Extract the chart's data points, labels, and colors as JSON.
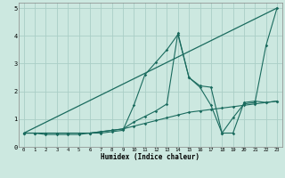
{
  "xlabel": "Humidex (Indice chaleur)",
  "xlim": [
    -0.5,
    23.5
  ],
  "ylim": [
    0,
    5.2
  ],
  "xticks": [
    0,
    1,
    2,
    3,
    4,
    5,
    6,
    7,
    8,
    9,
    10,
    11,
    12,
    13,
    14,
    15,
    16,
    17,
    18,
    19,
    20,
    21,
    22,
    23
  ],
  "yticks": [
    0,
    1,
    2,
    3,
    4,
    5
  ],
  "bg_color": "#cce8e0",
  "grid_color": "#aacec6",
  "line_color": "#1a6b5e",
  "series1_x": [
    0,
    1,
    2,
    3,
    4,
    5,
    6,
    7,
    8,
    9,
    10,
    11,
    12,
    13,
    14,
    15,
    16,
    17,
    18,
    19,
    20,
    21,
    22,
    23
  ],
  "series1_y": [
    0.5,
    0.5,
    0.5,
    0.5,
    0.5,
    0.5,
    0.5,
    0.55,
    0.6,
    0.65,
    0.75,
    0.85,
    0.95,
    1.05,
    1.15,
    1.25,
    1.3,
    1.35,
    1.4,
    1.45,
    1.5,
    1.55,
    1.6,
    1.65
  ],
  "series2_x": [
    0,
    1,
    2,
    3,
    4,
    5,
    6,
    7,
    8,
    9,
    10,
    11,
    12,
    13,
    14,
    15,
    16,
    17,
    18,
    19,
    20,
    21,
    22,
    23
  ],
  "series2_y": [
    0.5,
    0.5,
    0.45,
    0.45,
    0.45,
    0.45,
    0.5,
    0.5,
    0.55,
    0.6,
    1.5,
    2.6,
    3.05,
    3.5,
    4.05,
    2.5,
    2.15,
    1.5,
    0.5,
    1.05,
    1.55,
    1.6,
    3.65,
    5.0
  ],
  "series3_x": [
    0,
    1,
    2,
    3,
    4,
    5,
    6,
    7,
    8,
    9,
    10,
    11,
    12,
    13,
    14,
    15,
    16,
    17,
    18,
    19,
    20,
    21,
    22,
    23
  ],
  "series3_y": [
    0.5,
    0.5,
    0.5,
    0.5,
    0.5,
    0.5,
    0.5,
    0.55,
    0.6,
    0.65,
    0.9,
    1.1,
    1.3,
    1.55,
    4.1,
    2.5,
    2.2,
    2.15,
    0.5,
    0.5,
    1.6,
    1.65,
    1.6,
    1.65
  ],
  "series_line_x": [
    0,
    23
  ],
  "series_line_y": [
    0.5,
    5.0
  ]
}
